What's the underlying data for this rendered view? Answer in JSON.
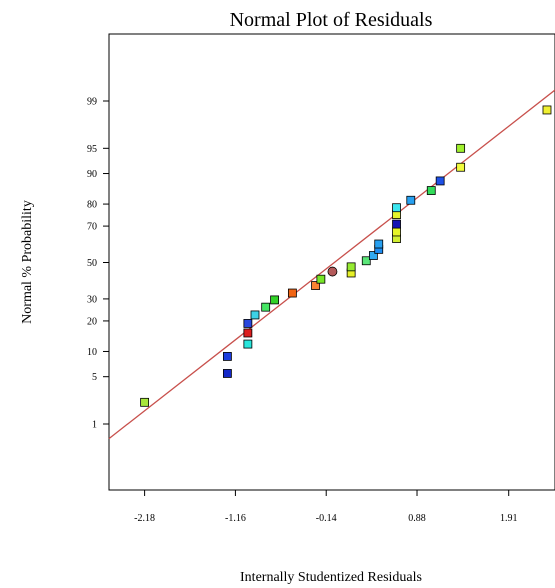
{
  "chart_data": {
    "type": "scatter",
    "title": "Normal Plot of Residuals",
    "xlabel": "Internally Studentized Residuals",
    "ylabel": "Normal % Probability",
    "xlim": [
      -2.58,
      2.43
    ],
    "x_ticks": [
      "-2.18",
      "-1.16",
      "-0.14",
      "0.88",
      "1.91"
    ],
    "y_ticks": [
      "1",
      "5",
      "10",
      "20",
      "30",
      "50",
      "70",
      "80",
      "90",
      "95",
      "99"
    ],
    "y_scale": "normal-probability",
    "grid": false,
    "legend": "none",
    "fit_line": {
      "color": "#c8504c",
      "from": [
        -2.58,
        0.56
      ],
      "to": [
        2.43,
        99.35
      ]
    },
    "points": [
      {
        "x": -2.18,
        "y": 2.2,
        "color": "#a8e63c",
        "shape": "square"
      },
      {
        "x": -1.25,
        "y": 5.5,
        "color": "#1428c8",
        "shape": "square"
      },
      {
        "x": -1.25,
        "y": 8.8,
        "color": "#1e3cdc",
        "shape": "square"
      },
      {
        "x": -1.02,
        "y": 12.0,
        "color": "#28e6dc",
        "shape": "square"
      },
      {
        "x": -1.02,
        "y": 15.5,
        "color": "#dc1e1e",
        "shape": "square"
      },
      {
        "x": -1.02,
        "y": 19.0,
        "color": "#2846dc",
        "shape": "square"
      },
      {
        "x": -0.94,
        "y": 22.5,
        "color": "#3cd2e6",
        "shape": "square"
      },
      {
        "x": -0.82,
        "y": 26.0,
        "color": "#46e664",
        "shape": "square"
      },
      {
        "x": -0.72,
        "y": 29.5,
        "color": "#32d228",
        "shape": "square"
      },
      {
        "x": -0.52,
        "y": 33.0,
        "color": "#f06414",
        "shape": "square"
      },
      {
        "x": -0.26,
        "y": 37.0,
        "color": "#fa8232",
        "shape": "square"
      },
      {
        "x": -0.2,
        "y": 40.5,
        "color": "#78e628",
        "shape": "square"
      },
      {
        "x": -0.07,
        "y": 44.8,
        "color": "#b45a5a",
        "shape": "circle"
      },
      {
        "x": 0.14,
        "y": 44.0,
        "color": "#e6f028",
        "shape": "square"
      },
      {
        "x": 0.14,
        "y": 47.5,
        "color": "#96eb32",
        "shape": "square"
      },
      {
        "x": 0.31,
        "y": 51.0,
        "color": "#5ae678",
        "shape": "square"
      },
      {
        "x": 0.39,
        "y": 54.0,
        "color": "#32aaf0",
        "shape": "square"
      },
      {
        "x": 0.45,
        "y": 57.5,
        "color": "#1e8cf0",
        "shape": "square"
      },
      {
        "x": 0.45,
        "y": 60.5,
        "color": "#28a0f0",
        "shape": "square"
      },
      {
        "x": 0.65,
        "y": 63.5,
        "color": "#d2f032",
        "shape": "square"
      },
      {
        "x": 0.65,
        "y": 67.0,
        "color": "#e6f528",
        "shape": "square"
      },
      {
        "x": 0.65,
        "y": 71.0,
        "color": "#1414b4",
        "shape": "square"
      },
      {
        "x": 0.65,
        "y": 75.5,
        "color": "#e6f52d",
        "shape": "square"
      },
      {
        "x": 0.65,
        "y": 78.5,
        "color": "#3ce6f0",
        "shape": "square"
      },
      {
        "x": 0.81,
        "y": 81.5,
        "color": "#28a0f0",
        "shape": "square"
      },
      {
        "x": 1.04,
        "y": 85.0,
        "color": "#32dc5a",
        "shape": "square"
      },
      {
        "x": 1.14,
        "y": 88.0,
        "color": "#1e50e6",
        "shape": "square"
      },
      {
        "x": 1.37,
        "y": 91.5,
        "color": "#f0fa3c",
        "shape": "square"
      },
      {
        "x": 1.37,
        "y": 95.0,
        "color": "#a0f02d",
        "shape": "square"
      },
      {
        "x": 2.34,
        "y": 98.6,
        "color": "#f0f032",
        "shape": "square"
      }
    ]
  }
}
